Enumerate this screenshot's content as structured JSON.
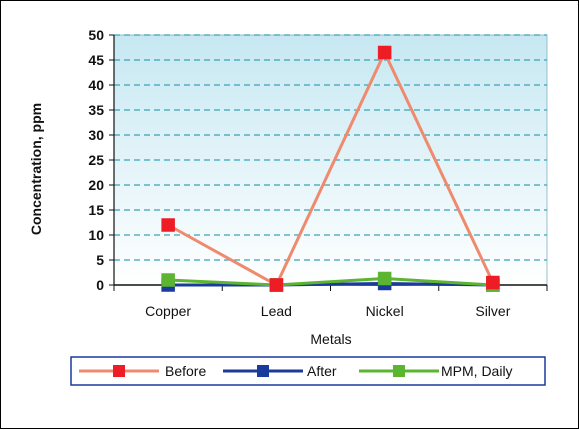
{
  "chart_data": {
    "type": "line",
    "title": "",
    "xlabel": "Metals",
    "ylabel": "Concentration, ppm",
    "categories": [
      "Copper",
      "Lead",
      "Nickel",
      "Silver"
    ],
    "ylim": [
      0,
      50
    ],
    "yticks": [
      0,
      5,
      10,
      15,
      20,
      25,
      30,
      35,
      40,
      45,
      50
    ],
    "grid": true,
    "legend_position": "bottom",
    "series": [
      {
        "name": "Before",
        "values": [
          12,
          0,
          46.5,
          0.5
        ],
        "color": "#f08a6e",
        "marker_color": "#ee1c24",
        "marker": "square"
      },
      {
        "name": "After",
        "values": [
          0,
          0,
          0.3,
          0
        ],
        "color": "#1a3a9c",
        "marker_color": "#1a3a9c",
        "marker": "square"
      },
      {
        "name": "MPM, Daily",
        "values": [
          1,
          0,
          1.3,
          0
        ],
        "color": "#5cb531",
        "marker_color": "#5cb531",
        "marker": "square"
      }
    ],
    "colors": {
      "plot_background_top": "#c6e8f2",
      "plot_background_bottom": "#ffffff",
      "gridline": "#3aa3b5"
    }
  }
}
